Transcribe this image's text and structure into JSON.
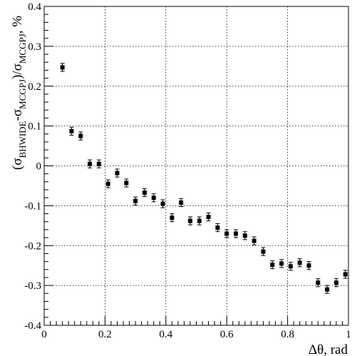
{
  "chart_data": {
    "type": "scatter",
    "xlabel": "Δθ, rad",
    "ylabel": {
      "open": "(σ",
      "sub1": "BHWIDE",
      "mid": "-σ",
      "sub2": "MCGPJ",
      "close": ")/σ",
      "sub3": "MCGPJ",
      "tail": ", %"
    },
    "xlim": [
      0,
      1
    ],
    "ylim": [
      -0.4,
      0.4
    ],
    "x_ticks": [
      "0",
      "0.2",
      "0.4",
      "0.6",
      "0.8",
      "1"
    ],
    "y_ticks": [
      "-0.4",
      "-0.3",
      "-0.2",
      "-0.1",
      "0",
      "0.1",
      "0.2",
      "0.3",
      "0.4"
    ],
    "grid": true,
    "series": [
      {
        "points": [
          {
            "x": 0.06,
            "y": 0.247,
            "err": 0.01
          },
          {
            "x": 0.09,
            "y": 0.087,
            "err": 0.01
          },
          {
            "x": 0.12,
            "y": 0.075,
            "err": 0.01
          },
          {
            "x": 0.15,
            "y": 0.005,
            "err": 0.01
          },
          {
            "x": 0.18,
            "y": 0.005,
            "err": 0.01
          },
          {
            "x": 0.21,
            "y": -0.045,
            "err": 0.01
          },
          {
            "x": 0.24,
            "y": -0.018,
            "err": 0.01
          },
          {
            "x": 0.27,
            "y": -0.043,
            "err": 0.01
          },
          {
            "x": 0.3,
            "y": -0.088,
            "err": 0.01
          },
          {
            "x": 0.33,
            "y": -0.067,
            "err": 0.01
          },
          {
            "x": 0.36,
            "y": -0.08,
            "err": 0.01
          },
          {
            "x": 0.39,
            "y": -0.095,
            "err": 0.01
          },
          {
            "x": 0.42,
            "y": -0.13,
            "err": 0.01
          },
          {
            "x": 0.45,
            "y": -0.092,
            "err": 0.01
          },
          {
            "x": 0.48,
            "y": -0.138,
            "err": 0.01
          },
          {
            "x": 0.51,
            "y": -0.138,
            "err": 0.01
          },
          {
            "x": 0.54,
            "y": -0.128,
            "err": 0.01
          },
          {
            "x": 0.57,
            "y": -0.155,
            "err": 0.01
          },
          {
            "x": 0.6,
            "y": -0.17,
            "err": 0.01
          },
          {
            "x": 0.63,
            "y": -0.17,
            "err": 0.01
          },
          {
            "x": 0.66,
            "y": -0.175,
            "err": 0.01
          },
          {
            "x": 0.69,
            "y": -0.188,
            "err": 0.01
          },
          {
            "x": 0.72,
            "y": -0.215,
            "err": 0.01
          },
          {
            "x": 0.75,
            "y": -0.248,
            "err": 0.01
          },
          {
            "x": 0.78,
            "y": -0.245,
            "err": 0.01
          },
          {
            "x": 0.81,
            "y": -0.252,
            "err": 0.01
          },
          {
            "x": 0.84,
            "y": -0.243,
            "err": 0.01
          },
          {
            "x": 0.87,
            "y": -0.25,
            "err": 0.01
          },
          {
            "x": 0.9,
            "y": -0.293,
            "err": 0.01
          },
          {
            "x": 0.93,
            "y": -0.31,
            "err": 0.01
          },
          {
            "x": 0.96,
            "y": -0.293,
            "err": 0.01
          },
          {
            "x": 0.99,
            "y": -0.272,
            "err": 0.01
          }
        ]
      }
    ]
  }
}
